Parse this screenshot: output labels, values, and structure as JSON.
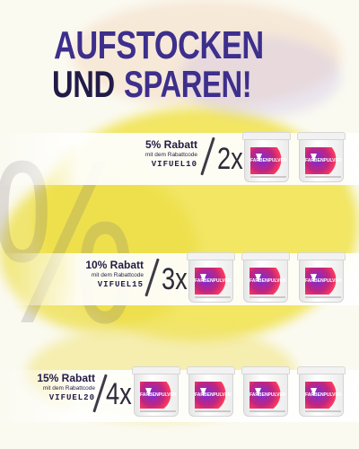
{
  "headline": {
    "line1": "AUFSTOCKEN",
    "line2_a": "UND",
    "line2_b": "SPAREN!"
  },
  "background_symbol": "%",
  "tiers": [
    {
      "discount": "5% Rabatt",
      "note": "mit dem Rabattcode",
      "code": "VIFUEL10",
      "multiplier": "2x",
      "jar_count": 2
    },
    {
      "discount": "10% Rabatt",
      "note": "mit dem Rabattcode",
      "code": "VIFUEL15",
      "multiplier": "3x",
      "jar_count": 3
    },
    {
      "discount": "15% Rabatt",
      "note": "mit dem Rabattcode",
      "code": "VIFUEL20",
      "multiplier": "4x",
      "jar_count": 4
    }
  ],
  "product": {
    "label": "FARBENPULVER",
    "icon": "jar-icon"
  },
  "colors": {
    "headline_primary": "#3d2f8c",
    "headline_dark": "#231b47",
    "background_accent": "#f0e24a",
    "splash_purple": "#7a2bd8",
    "splash_pink": "#ff3a5c"
  }
}
